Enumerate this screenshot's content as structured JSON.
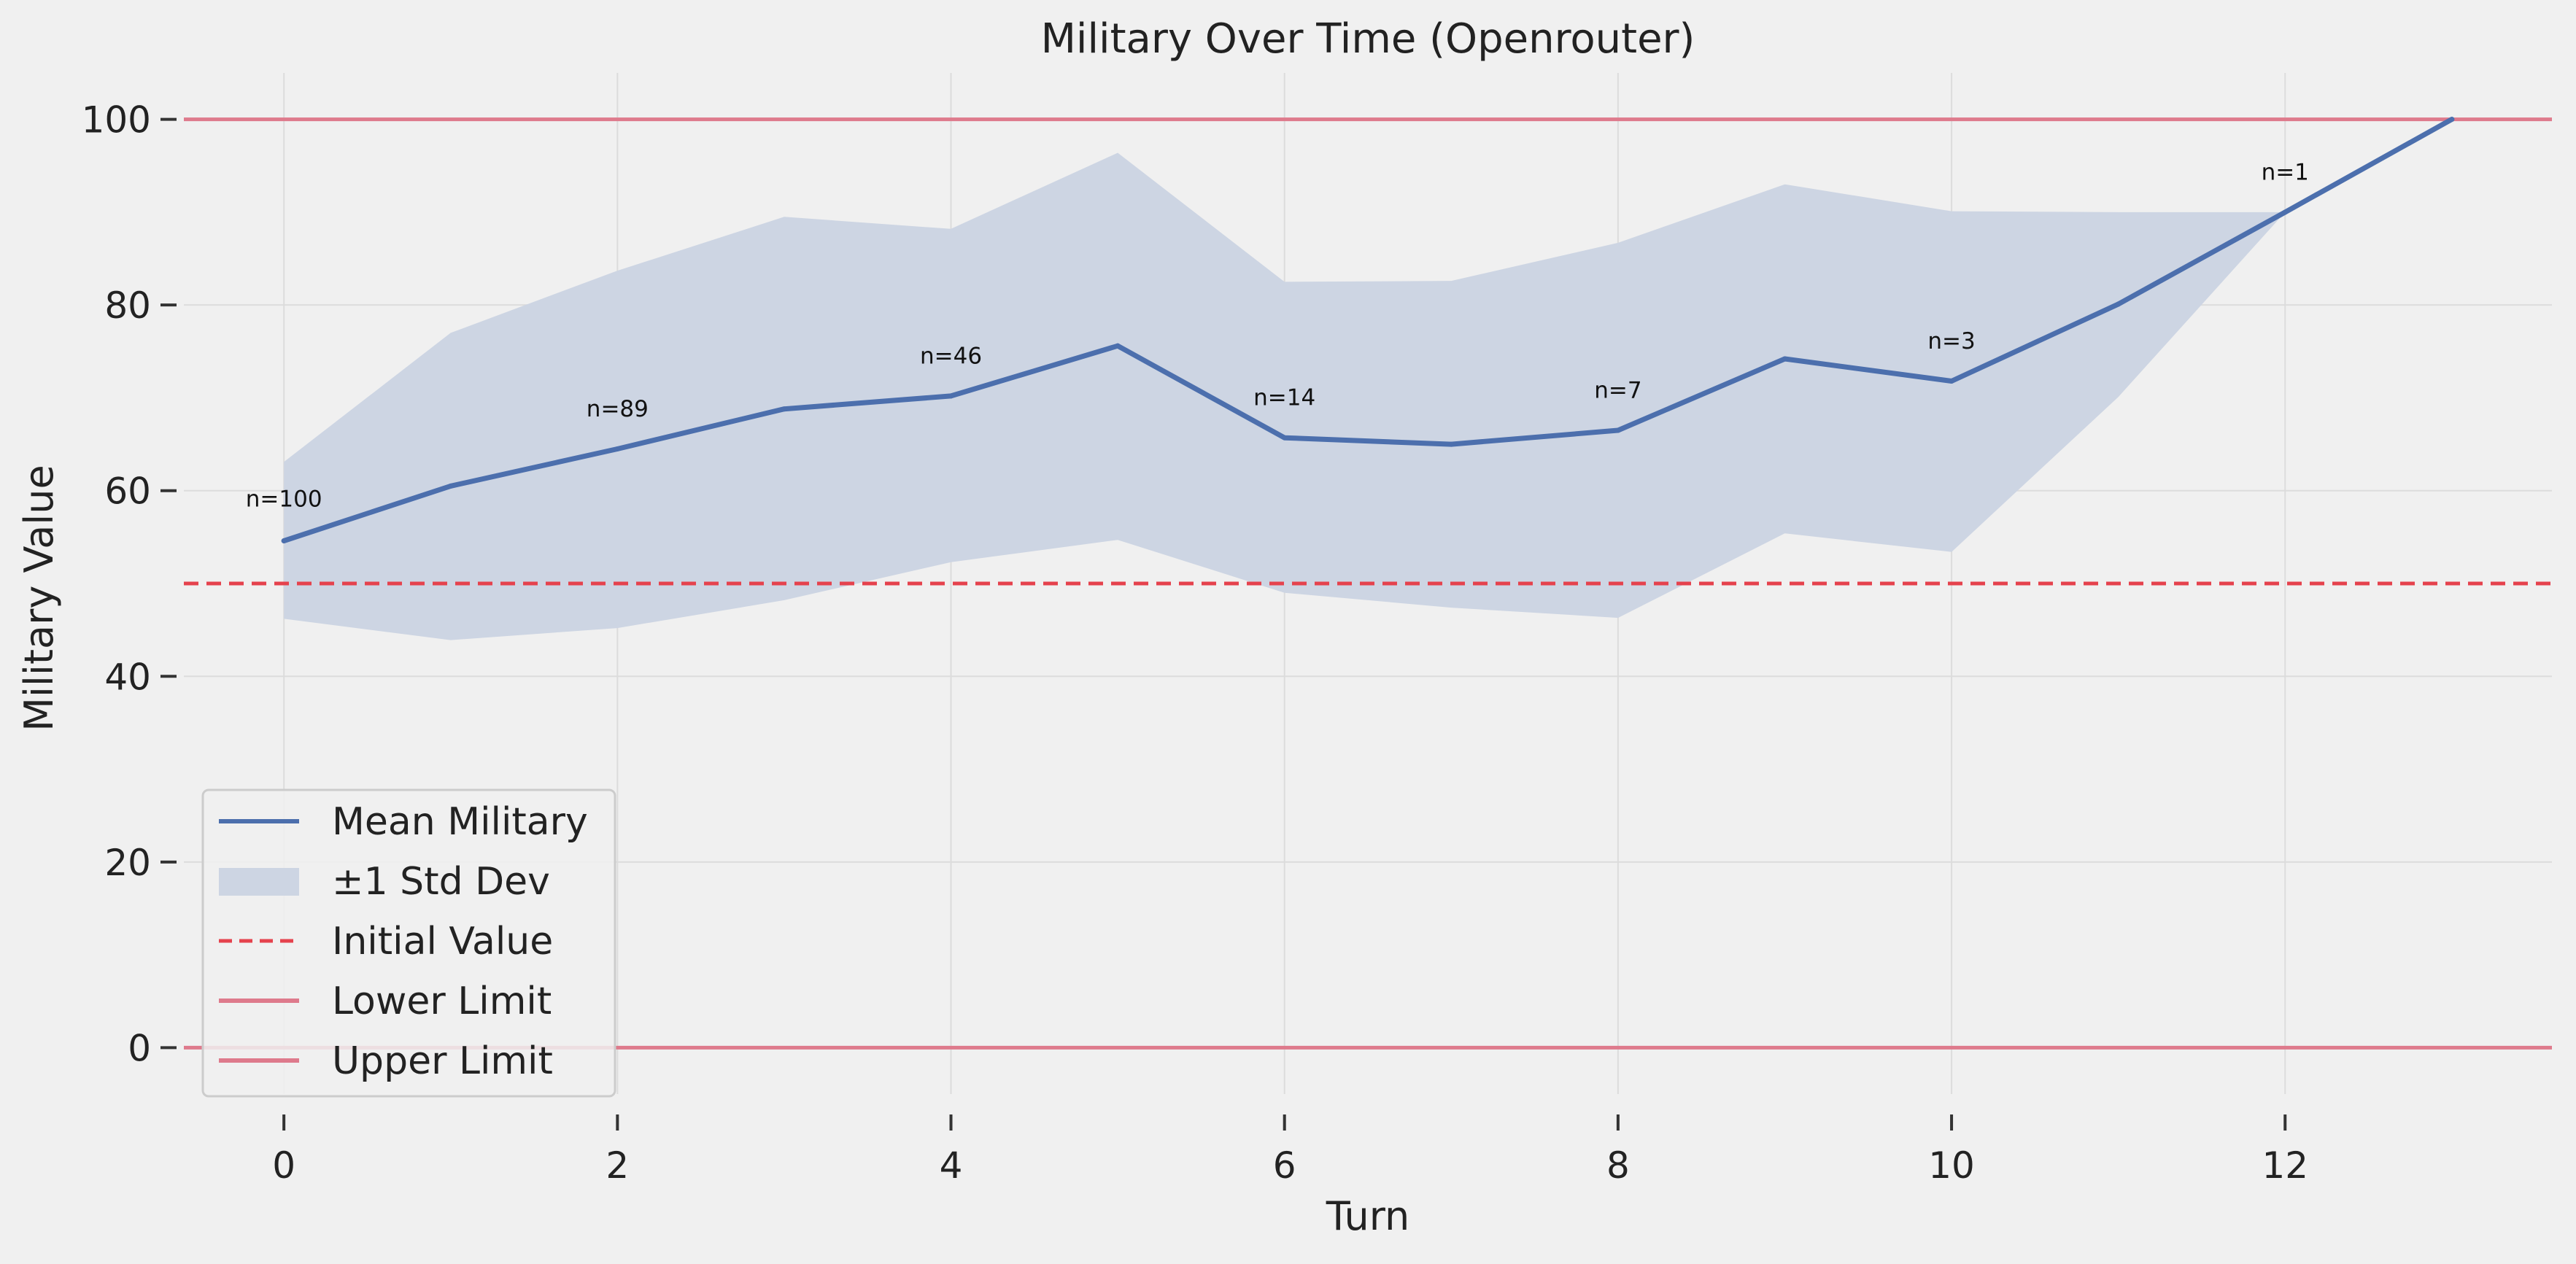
{
  "chart_data": {
    "type": "line",
    "title": "Military Over Time (Openrouter)",
    "xlabel": "Turn",
    "ylabel": "Military Value",
    "xlim": [
      -0.6,
      13.6
    ],
    "ylim": [
      -5,
      105
    ],
    "x_ticks": [
      0,
      2,
      4,
      6,
      8,
      10,
      12
    ],
    "y_ticks": [
      0,
      20,
      40,
      60,
      80,
      100
    ],
    "grid": true,
    "legend_position": "lower-left",
    "x": [
      0,
      1,
      2,
      3,
      4,
      5,
      6,
      7,
      8,
      9,
      10,
      11,
      12,
      13
    ],
    "series": [
      {
        "name": "Mean Military",
        "style": "solid",
        "color": "#4c6fad",
        "values": [
          54.6,
          60.5,
          64.5,
          68.8,
          70.2,
          75.6,
          65.7,
          65.0,
          66.5,
          74.2,
          71.8,
          80.1,
          90.0,
          100.0
        ]
      }
    ],
    "band": {
      "name": "±1 Std Dev",
      "color": "#cdd5e3",
      "upper": [
        63.1,
        77.0,
        83.7,
        89.5,
        88.2,
        96.4,
        82.5,
        82.6,
        86.7,
        93.0,
        90.1,
        90.0,
        90.0,
        100.0
      ],
      "lower": [
        46.2,
        43.9,
        45.2,
        48.2,
        52.3,
        54.7,
        49.0,
        47.4,
        46.3,
        55.4,
        53.4,
        70.1,
        90.0,
        100.0
      ]
    },
    "reference_lines": [
      {
        "name": "Initial Value",
        "y": 50,
        "style": "dashed",
        "color": "#e5424d"
      },
      {
        "name": "Lower Limit",
        "y": 0,
        "style": "solid",
        "color": "#de7a8c"
      },
      {
        "name": "Upper Limit",
        "y": 100,
        "style": "solid",
        "color": "#de7a8c"
      }
    ],
    "annotations": [
      {
        "text": "n=100",
        "x": 0,
        "y": 58.3
      },
      {
        "text": "n=89",
        "x": 2,
        "y": 68.0
      },
      {
        "text": "n=46",
        "x": 4,
        "y": 73.7
      },
      {
        "text": "n=14",
        "x": 6,
        "y": 69.2
      },
      {
        "text": "n=7",
        "x": 8,
        "y": 70.0
      },
      {
        "text": "n=3",
        "x": 10,
        "y": 75.3
      },
      {
        "text": "n=1",
        "x": 12,
        "y": 93.5
      }
    ],
    "legend": [
      {
        "label": "Mean Military",
        "kind": "line",
        "color": "#4c6fad"
      },
      {
        "label": "±1 Std Dev",
        "kind": "patch",
        "color": "#cdd5e3"
      },
      {
        "label": "Initial Value",
        "kind": "dashed",
        "color": "#e5424d"
      },
      {
        "label": "Lower Limit",
        "kind": "line",
        "color": "#de7a8c"
      },
      {
        "label": "Upper Limit",
        "kind": "line",
        "color": "#de7a8c"
      }
    ]
  }
}
